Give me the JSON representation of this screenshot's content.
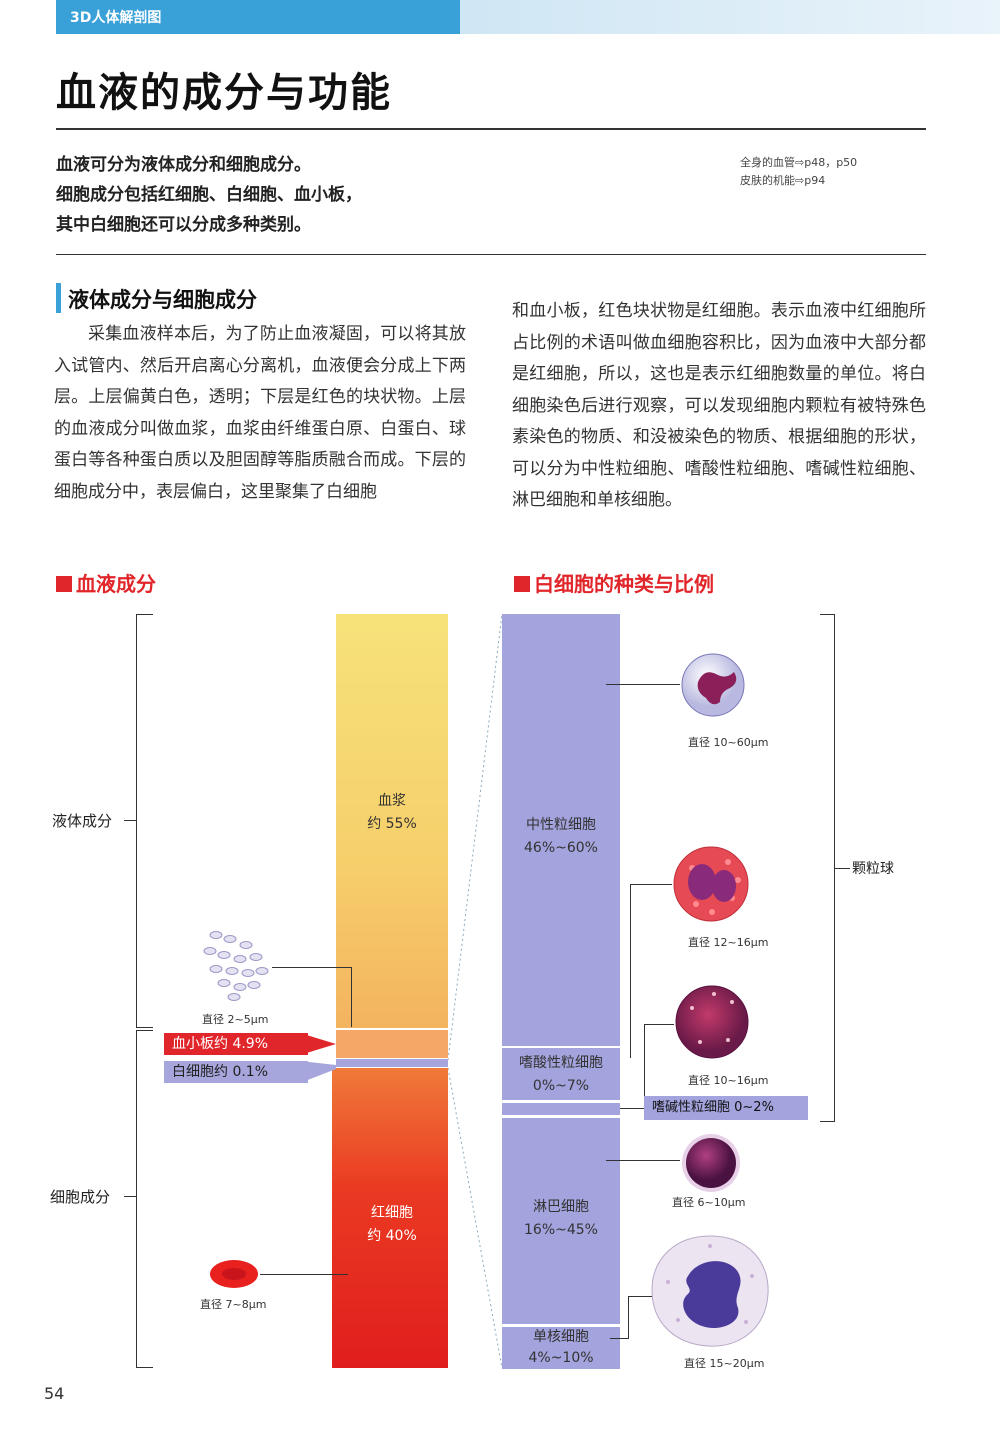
{
  "header": {
    "series": "3D人体解剖图"
  },
  "title": "血液的成分与功能",
  "intro": [
    "血液可分为液体成分和细胞成分。",
    "细胞成分包括红细胞、白细胞、血小板，",
    "其中白细胞还可以分成多种类别。"
  ],
  "xref": [
    "全身的血管⇨p48，p50",
    "皮肤的机能⇨p94"
  ],
  "section": {
    "heading": "液体成分与细胞成分",
    "body_left": "采集血液样本后，为了防止血液凝固，可以将其放入试管内、然后开启离心分离机，血液便会分成上下两层。上层偏黄白色，透明；下层是红色的块状物。上层的血液成分叫做血浆，血浆由纤维蛋白原、白蛋白、球蛋白等各种蛋白质以及胆固醇等脂质融合而成。下层的细胞成分中，表层偏白，这里聚集了白细胞",
    "body_right": "和血小板，红色块状物是红细胞。表示血液中红细胞所占比例的术语叫做血细胞容积比，因为血液中大部分都是红细胞，所以，这也是表示红细胞数量的单位。将白细胞染色后进行观察，可以发现细胞内颗粒有被特殊色素染色的物质、和没被染色的物质、根据细胞的形状，可以分为中性粒细胞、嗜酸性粒细胞、嗜碱性粒细胞、淋巴细胞和单核细胞。"
  },
  "fig_left": {
    "title": "血液成分",
    "liquid_label": "液体成分",
    "cell_label": "细胞成分",
    "plasma": {
      "name": "血浆",
      "pct": "约 55%",
      "fraction": 0.55
    },
    "platelet_tag": "血小板约 4.9%",
    "wbc_tag": "白细胞约 0.1%",
    "rbc": {
      "name": "红细胞",
      "pct": "约 40%",
      "fraction": 0.4
    },
    "platelet_size": "直径 2~5μm",
    "rbc_size": "直径 7~8μm",
    "colors": {
      "plasma_top": "#f7e07a",
      "plasma_bottom": "#f4b160",
      "rbc_top": "#f06a35",
      "rbc_bottom": "#e01e1e",
      "tag_red": "#e1262b",
      "tag_purple": "#a7a6dc"
    }
  },
  "fig_right": {
    "title": "白细胞的种类与比例",
    "neutrophil": {
      "name": "中性粒细胞",
      "pct": "46%~60%",
      "size": "直径 10~60μm"
    },
    "eosinophil": {
      "name": "嗜酸性粒细胞",
      "pct": "0%~7%",
      "size": "直径 12~16μm"
    },
    "basophil": {
      "tag": "嗜碱性粒细胞 0~2%",
      "size": "直径 10~16μm"
    },
    "lymphocyte": {
      "name": "淋巴细胞",
      "pct": "16%~45%",
      "size": "直径 6~10μm"
    },
    "monocyte": {
      "name": "单核细胞",
      "pct": "4%~10%",
      "size": "直径 15~20μm"
    },
    "granulocyte_label": "颗粒球",
    "colors": {
      "column": "#a3a3dd"
    }
  },
  "page_number": "54"
}
